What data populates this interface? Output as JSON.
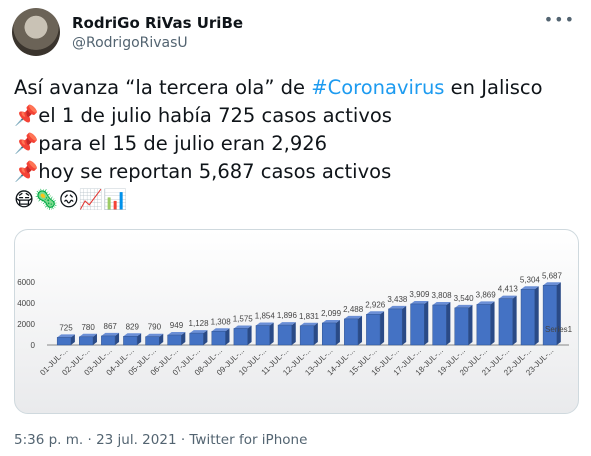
{
  "tweet": {
    "name": "RodriGo RiVas UriBe",
    "handle": "@RodrigoRivasU",
    "lines": [
      [
        "Así avanza “la tercera ola” de ",
        "#Coronavirus",
        " en Jalisco"
      ],
      [
        "📌el 1 de julio había 725 casos activos"
      ],
      [
        "📌para el 15 de julio eran 2,926"
      ],
      [
        "📌hoy se reportan 5,687 casos activos"
      ],
      [
        "😷🦠😖📈📊"
      ]
    ],
    "footer": "5:36 p. m. · 23 jul. 2021 · Twitter for iPhone"
  },
  "chart_data": {
    "type": "bar",
    "categories": [
      "01-JUL-...",
      "02-JUL-...",
      "03-JUL-...",
      "04-JUL-...",
      "05-JUL-...",
      "06-JUL-...",
      "07-JUL-...",
      "08-JUL-...",
      "09-JUL-...",
      "10-JUL-...",
      "11-JUL-...",
      "12-JUL-...",
      "13-JUL-...",
      "14-JUL-...",
      "15-JUL-...",
      "16-JUL-...",
      "17-JUL-...",
      "18-JUL-...",
      "19-JUL-...",
      "20-JUL-...",
      "21-JUL-...",
      "22-JUL-...",
      "23-JUL-..."
    ],
    "series": [
      {
        "name": "Series1",
        "color": "#4472c4",
        "values": [
          725,
          780,
          867,
          829,
          790,
          949,
          1128,
          1308,
          1575,
          1854,
          1896,
          1831,
          2099,
          2488,
          2926,
          3438,
          3909,
          3808,
          3540,
          3869,
          4413,
          5304,
          5687
        ],
        "value_labels": [
          "725",
          "780",
          "867",
          "829",
          "790",
          "949",
          "1,128",
          "1,308",
          "1,575",
          "1,854",
          "1,896",
          "1,831",
          "2,099",
          "2,488",
          "2,926",
          "3,438",
          "3,909",
          "3,808",
          "3,540",
          "3,869",
          "4,413",
          "5,304",
          "5,687"
        ]
      }
    ],
    "ylim": [
      0,
      6000
    ],
    "yticks": [
      0,
      2000,
      4000,
      6000
    ],
    "grid": false
  }
}
